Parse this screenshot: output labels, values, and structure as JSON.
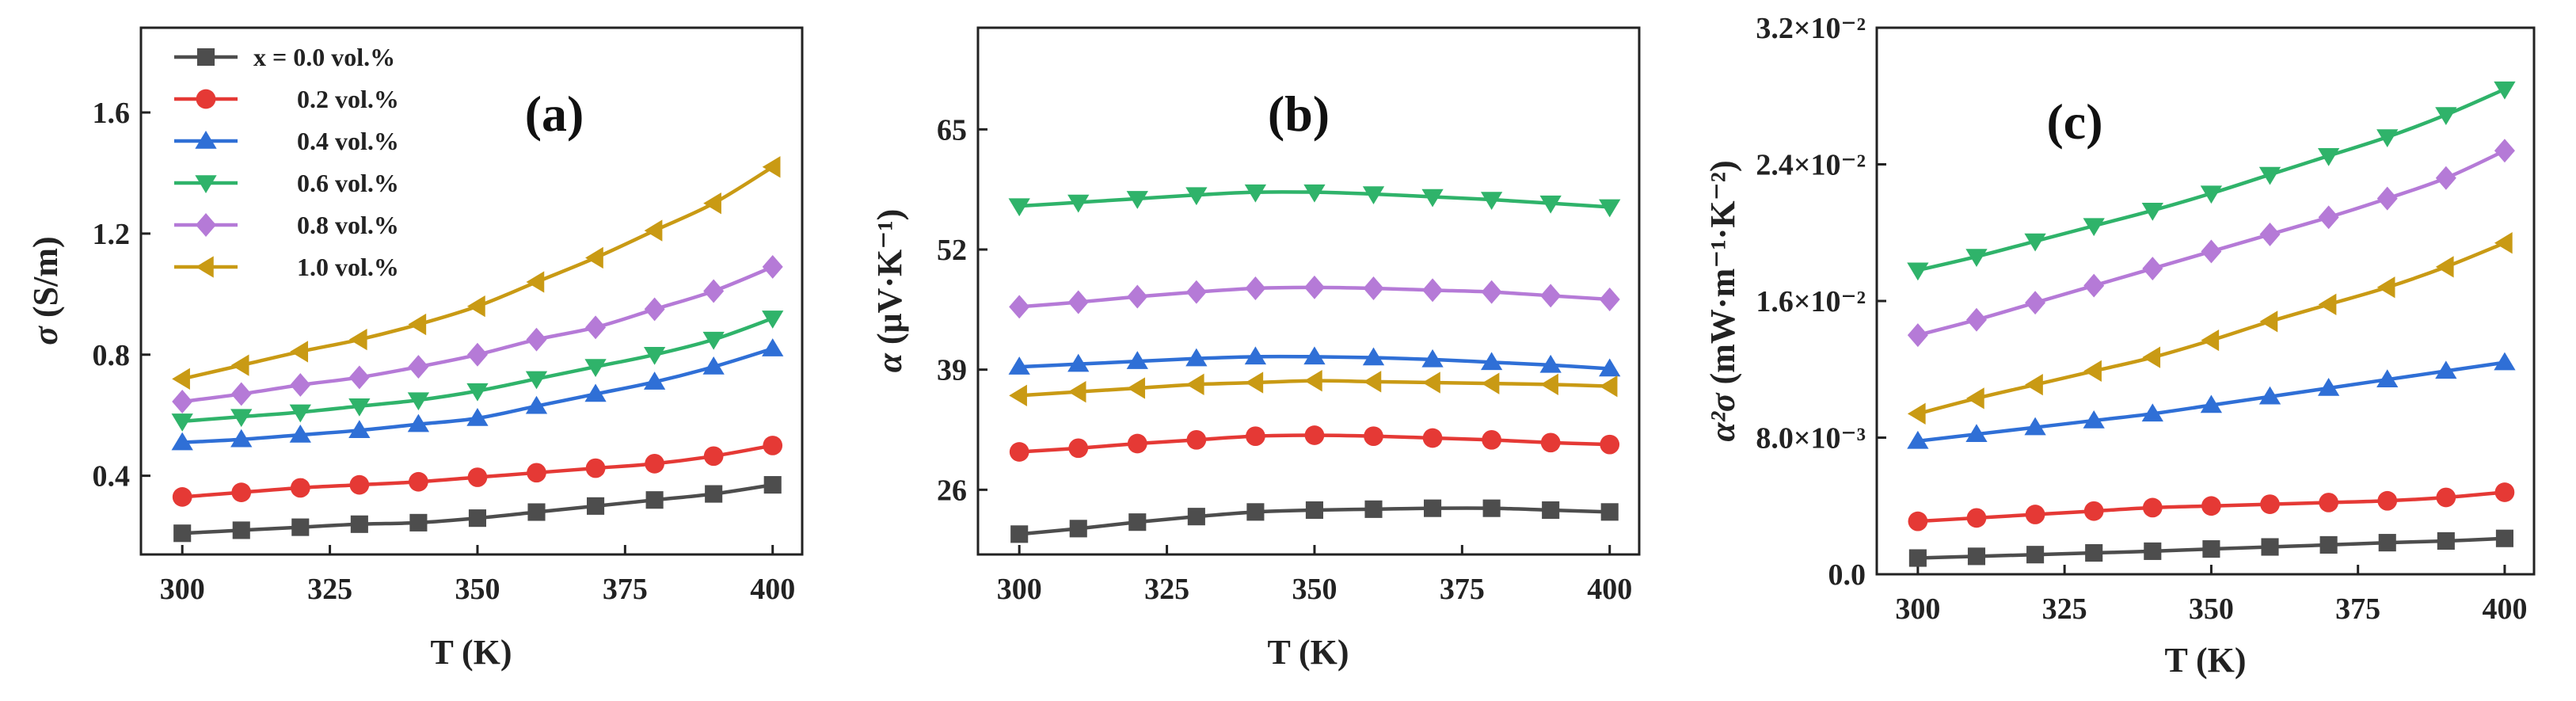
{
  "colors": {
    "0.0": "#4d4d4d",
    "0.2": "#e53935",
    "0.4": "#2f6fd6",
    "0.6": "#2fb36a",
    "0.8": "#b57ad7",
    "1.0": "#c99a14"
  },
  "legend": [
    {
      "label": "x = 0.0 vol.%",
      "key": "0.0",
      "marker": "square"
    },
    {
      "label": "0.2 vol.%",
      "key": "0.2",
      "marker": "circle"
    },
    {
      "label": "0.4 vol.%",
      "key": "0.4",
      "marker": "triangle-up"
    },
    {
      "label": "0.6 vol.%",
      "key": "0.6",
      "marker": "triangle-down"
    },
    {
      "label": "0.8 vol.%",
      "key": "0.8",
      "marker": "diamond"
    },
    {
      "label": "1.0 vol.%",
      "key": "1.0",
      "marker": "triangle-left"
    }
  ],
  "chart_data": [
    {
      "panel": "(a)",
      "type": "line",
      "xlabel": "T (K)",
      "ylabel_parts": {
        "sym": "σ",
        "unit": " (S/m)"
      },
      "xlim": [
        293,
        405
      ],
      "ylim": [
        0.14,
        1.88
      ],
      "xticks": [
        300,
        325,
        350,
        375,
        400
      ],
      "yticks": [
        {
          "v": 0.4,
          "label": "0.4"
        },
        {
          "v": 0.8,
          "label": "0.8"
        },
        {
          "v": 1.2,
          "label": "1.2"
        },
        {
          "v": 1.6,
          "label": "1.6"
        }
      ],
      "x": [
        300,
        310,
        320,
        330,
        340,
        350,
        360,
        370,
        380,
        390,
        400
      ],
      "series": [
        {
          "name": "x = 0.0 vol.%",
          "key": "0.0",
          "marker": "square",
          "values": [
            0.21,
            0.22,
            0.23,
            0.24,
            0.245,
            0.26,
            0.28,
            0.3,
            0.32,
            0.34,
            0.37
          ]
        },
        {
          "name": "0.2 vol.%",
          "key": "0.2",
          "marker": "circle",
          "values": [
            0.33,
            0.345,
            0.36,
            0.37,
            0.38,
            0.395,
            0.41,
            0.425,
            0.44,
            0.465,
            0.5
          ]
        },
        {
          "name": "0.4 vol.%",
          "key": "0.4",
          "marker": "triangle-up",
          "values": [
            0.51,
            0.52,
            0.535,
            0.55,
            0.57,
            0.59,
            0.63,
            0.67,
            0.71,
            0.76,
            0.82
          ]
        },
        {
          "name": "0.6 vol.%",
          "key": "0.6",
          "marker": "triangle-down",
          "values": [
            0.58,
            0.595,
            0.61,
            0.63,
            0.65,
            0.68,
            0.72,
            0.76,
            0.8,
            0.85,
            0.92
          ]
        },
        {
          "name": "0.8 vol.%",
          "key": "0.8",
          "marker": "diamond",
          "values": [
            0.645,
            0.67,
            0.7,
            0.725,
            0.76,
            0.8,
            0.85,
            0.89,
            0.95,
            1.01,
            1.09
          ]
        },
        {
          "name": "1.0 vol.%",
          "key": "1.0",
          "marker": "triangle-left",
          "values": [
            0.72,
            0.765,
            0.81,
            0.85,
            0.9,
            0.96,
            1.04,
            1.12,
            1.21,
            1.3,
            1.42
          ]
        }
      ]
    },
    {
      "panel": "(b)",
      "type": "line",
      "xlabel": "T (K)",
      "ylabel_parts": {
        "sym": "α",
        "unit": " (μV·K⁻¹)"
      },
      "xlim": [
        293,
        405
      ],
      "ylim": [
        19,
        76
      ],
      "xticks": [
        300,
        325,
        350,
        375,
        400
      ],
      "yticks": [
        {
          "v": 26,
          "label": "26"
        },
        {
          "v": 39,
          "label": "39"
        },
        {
          "v": 52,
          "label": "52"
        },
        {
          "v": 65,
          "label": "65"
        }
      ],
      "x": [
        300,
        310,
        320,
        330,
        340,
        350,
        360,
        370,
        380,
        390,
        400
      ],
      "series": [
        {
          "name": "x = 0.0 vol.%",
          "key": "0.0",
          "marker": "square",
          "values": [
            21.2,
            21.8,
            22.5,
            23.1,
            23.6,
            23.8,
            23.9,
            24.0,
            24.0,
            23.8,
            23.6
          ]
        },
        {
          "name": "0.2 vol.%",
          "key": "0.2",
          "marker": "circle",
          "values": [
            30.1,
            30.5,
            31.0,
            31.4,
            31.8,
            31.9,
            31.8,
            31.6,
            31.4,
            31.1,
            30.9
          ]
        },
        {
          "name": "0.4 vol.%",
          "key": "0.4",
          "marker": "triangle-up",
          "values": [
            39.3,
            39.6,
            39.9,
            40.2,
            40.4,
            40.4,
            40.3,
            40.1,
            39.8,
            39.5,
            39.1
          ]
        },
        {
          "name": "0.6 vol.%",
          "key": "0.6",
          "marker": "triangle-down",
          "values": [
            56.7,
            57.1,
            57.5,
            57.9,
            58.2,
            58.2,
            58.0,
            57.7,
            57.4,
            57.0,
            56.6
          ]
        },
        {
          "name": "0.8 vol.%",
          "key": "0.8",
          "marker": "diamond",
          "values": [
            45.8,
            46.3,
            46.9,
            47.4,
            47.8,
            47.9,
            47.8,
            47.6,
            47.4,
            47.0,
            46.6
          ]
        },
        {
          "name": "1.0 vol.%",
          "key": "1.0",
          "marker": "triangle-left",
          "values": [
            36.2,
            36.6,
            37.0,
            37.4,
            37.6,
            37.8,
            37.7,
            37.6,
            37.5,
            37.4,
            37.2
          ]
        }
      ]
    },
    {
      "panel": "(c)",
      "type": "line",
      "xlabel": "T (K)",
      "ylabel_parts": {
        "sym": "α²σ",
        "unit": " (mW·m⁻¹·K⁻²)"
      },
      "xlim": [
        293,
        405
      ],
      "ylim": [
        0.0,
        0.032
      ],
      "xticks": [
        300,
        325,
        350,
        375,
        400
      ],
      "yticks": [
        {
          "v": 0.0,
          "label": "0.0"
        },
        {
          "v": 0.008,
          "label": "8.0×10⁻³"
        },
        {
          "v": 0.016,
          "label": "1.6×10⁻²"
        },
        {
          "v": 0.024,
          "label": "2.4×10⁻²"
        },
        {
          "v": 0.032,
          "label": "3.2×10⁻²"
        }
      ],
      "x": [
        300,
        310,
        320,
        330,
        340,
        350,
        360,
        370,
        380,
        390,
        400
      ],
      "series": [
        {
          "name": "x = 0.0 vol.%",
          "key": "0.0",
          "marker": "square",
          "values": [
            0.00095,
            0.00105,
            0.00115,
            0.00125,
            0.00135,
            0.00148,
            0.0016,
            0.00172,
            0.00185,
            0.00195,
            0.0021
          ]
        },
        {
          "name": "0.2 vol.%",
          "key": "0.2",
          "marker": "circle",
          "values": [
            0.0031,
            0.0033,
            0.0035,
            0.0037,
            0.0039,
            0.004,
            0.0041,
            0.0042,
            0.0043,
            0.0045,
            0.0048
          ]
        },
        {
          "name": "0.4 vol.%",
          "key": "0.4",
          "marker": "triangle-up",
          "values": [
            0.0078,
            0.0082,
            0.0086,
            0.009,
            0.0094,
            0.0099,
            0.0104,
            0.0109,
            0.0114,
            0.0119,
            0.0124
          ]
        },
        {
          "name": "0.6 vol.%",
          "key": "0.6",
          "marker": "triangle-down",
          "values": [
            0.0178,
            0.0186,
            0.0195,
            0.0204,
            0.0213,
            0.0223,
            0.0234,
            0.0245,
            0.0256,
            0.0269,
            0.0284
          ]
        },
        {
          "name": "0.8 vol.%",
          "key": "0.8",
          "marker": "diamond",
          "values": [
            0.014,
            0.0149,
            0.0159,
            0.0169,
            0.0179,
            0.0189,
            0.0199,
            0.0209,
            0.022,
            0.0232,
            0.0248
          ]
        },
        {
          "name": "1.0 vol.%",
          "key": "1.0",
          "marker": "triangle-left",
          "values": [
            0.0094,
            0.0103,
            0.0111,
            0.0119,
            0.0127,
            0.0137,
            0.0148,
            0.0158,
            0.0168,
            0.018,
            0.0194
          ]
        }
      ]
    }
  ]
}
